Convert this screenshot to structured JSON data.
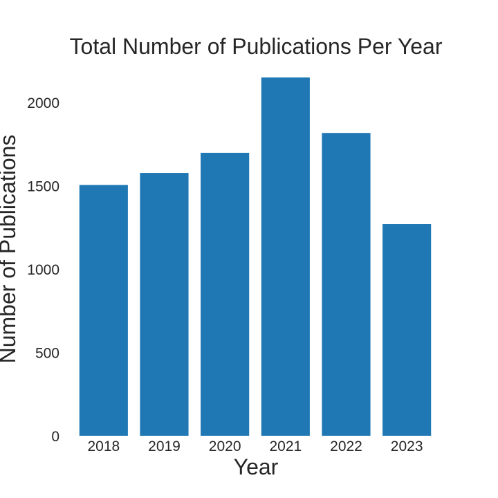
{
  "chart_data": {
    "type": "bar",
    "title": "Total Number of Publications Per Year",
    "xlabel": "Year",
    "ylabel": "Number of Publications",
    "categories": [
      "2018",
      "2019",
      "2020",
      "2021",
      "2022",
      "2023"
    ],
    "values": [
      1505,
      1577,
      1698,
      2150,
      1817,
      1270
    ],
    "ylim": [
      0,
      2150
    ],
    "yticks": [
      0,
      500,
      1000,
      1500,
      2000
    ],
    "grid": false,
    "bar_color": "#1f77b4"
  }
}
